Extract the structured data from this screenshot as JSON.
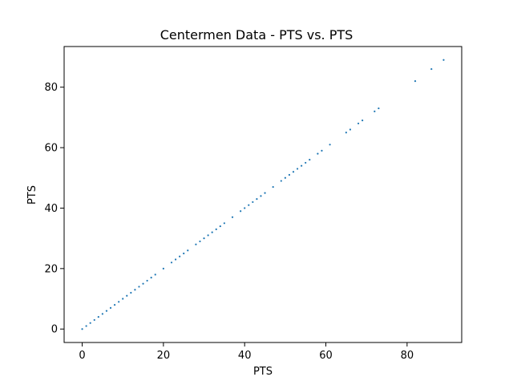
{
  "chart_data": {
    "type": "scatter",
    "title": "Centermen Data - PTS vs. PTS",
    "xlabel": "PTS",
    "ylabel": "PTS",
    "xlim": [
      -4.45,
      93.45
    ],
    "ylim": [
      -4.45,
      93.45
    ],
    "x_ticks": [
      0,
      20,
      40,
      60,
      80
    ],
    "y_ticks": [
      0,
      20,
      40,
      60,
      80
    ],
    "grid": false,
    "marker_color": "#1f77b4",
    "series": [
      {
        "x": [
          0,
          1,
          2,
          3,
          4,
          5,
          6,
          7,
          8,
          9,
          10,
          11,
          12,
          13,
          14,
          15,
          16,
          17,
          18,
          20,
          22,
          23,
          24,
          25,
          26,
          28,
          29,
          30,
          31,
          32,
          33,
          34,
          35,
          37,
          39,
          40,
          41,
          42,
          43,
          44,
          45,
          47,
          49,
          50,
          51,
          52,
          53,
          54,
          55,
          56,
          58,
          59,
          61,
          65,
          66,
          68,
          69,
          72,
          73,
          82,
          86,
          89
        ],
        "y": [
          0,
          1,
          2,
          3,
          4,
          5,
          6,
          7,
          8,
          9,
          10,
          11,
          12,
          13,
          14,
          15,
          16,
          17,
          18,
          20,
          22,
          23,
          24,
          25,
          26,
          28,
          29,
          30,
          31,
          32,
          33,
          34,
          35,
          37,
          39,
          40,
          41,
          42,
          43,
          44,
          45,
          47,
          49,
          50,
          51,
          52,
          53,
          54,
          55,
          56,
          58,
          59,
          61,
          65,
          66,
          68,
          69,
          72,
          73,
          82,
          86,
          89
        ]
      }
    ]
  }
}
